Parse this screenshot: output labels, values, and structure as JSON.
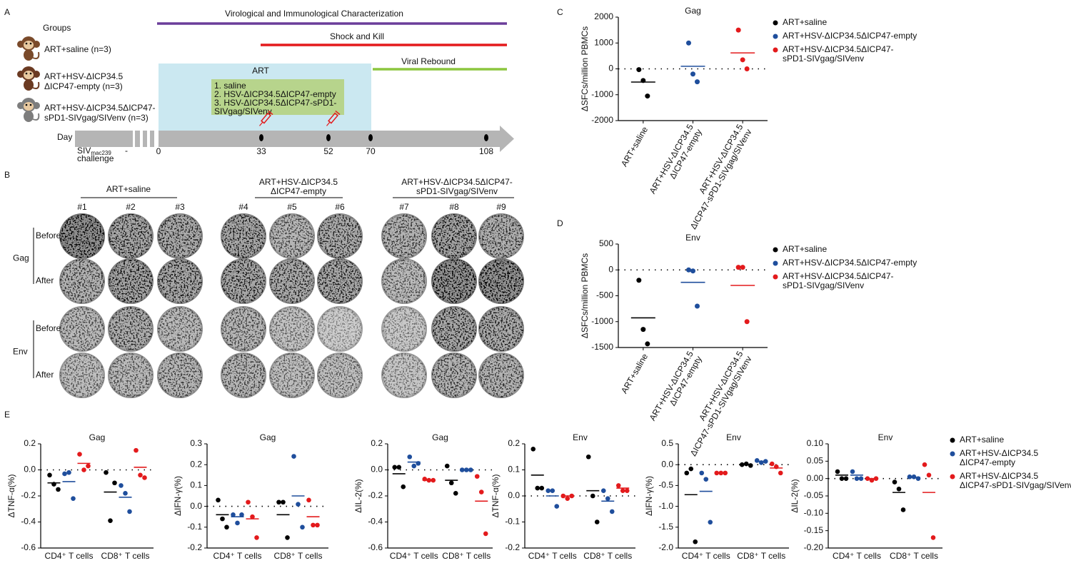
{
  "panels": [
    "A",
    "B",
    "C",
    "D",
    "E"
  ],
  "timeline": {
    "groups_title": "Groups",
    "groups": [
      [
        "ART+saline (n=3)"
      ],
      [
        "ART+HSV-ΔICP34.5",
        "ΔICP47-empty (n=3)"
      ],
      [
        "ART+HSV-ΔICP34.5ΔICP47-",
        "sPD1-SIVgag/SIVenv (n=3)"
      ]
    ],
    "phases": {
      "characterization": "Virological and Immunological Characterization",
      "shock_and_kill": "Shock and Kill",
      "art": "ART",
      "rebound": "Viral Rebound"
    },
    "treatments": [
      [
        "1. saline"
      ],
      [
        "2. HSV-ΔICP34.5ΔICP47-empty"
      ],
      [
        "3. HSV-ΔICP34.5ΔICP47-sPD1-",
        "SIVgag/SIVenv"
      ]
    ],
    "day_label": "Day",
    "days": [
      "0",
      "33",
      "52",
      "70",
      "108"
    ],
    "dash": "-",
    "challenge": {
      "virus": "SIV",
      "subscript": "mac239",
      "label": "challenge"
    }
  },
  "elispot": {
    "groups": [
      [
        "ART+saline"
      ],
      [
        "ART+HSV-ΔICP34.5",
        "ΔICP47-empty"
      ],
      [
        "ART+HSV-ΔICP34.5ΔICP47-",
        "sPD1-SIVgag/SIVenv"
      ]
    ],
    "animals": [
      "#1",
      "#2",
      "#3",
      "#4",
      "#5",
      "#6",
      "#7",
      "#8",
      "#9"
    ],
    "antigens": [
      "Gag",
      "Env"
    ],
    "timepoints": [
      "Before",
      "After"
    ]
  },
  "chart_data": [
    {
      "type": "dot",
      "title": "Gag",
      "ylabel": "ΔSFCs/million PBMCs",
      "categories": [
        [
          "ART+saline"
        ],
        [
          "ART+HSV-ΔICP34.5",
          "ΔICP47-empty"
        ],
        [
          "ART+HSV-ΔICP34.5",
          "ΔICP47-sPD1-SIVgag/SIVenv"
        ]
      ],
      "series": [
        {
          "name": [
            "ART+saline"
          ],
          "color": "#000000",
          "values": [
            -30,
            -450,
            -1050
          ],
          "mean": -510
        },
        {
          "name": [
            "ART+HSV-ΔICP34.5ΔICP47-empty"
          ],
          "color": "#1f4e9c",
          "values": [
            1000,
            -200,
            -500
          ],
          "mean": 100
        },
        {
          "name": [
            "ART+HSV-ΔICP34.5ΔICP47-",
            "sPD1-SIVgag/SIVenv"
          ],
          "color": "#e31a1c",
          "values": [
            1500,
            350,
            0
          ],
          "mean": 617
        }
      ],
      "ylim": [
        -2000,
        2000
      ],
      "yticks": [
        -2000,
        -1000,
        0,
        1000,
        2000
      ],
      "zero_line": true,
      "legend": "right"
    },
    {
      "type": "dot",
      "title": "Env",
      "ylabel": "ΔSFCs/million PBMCs",
      "categories": [
        [
          "ART+saline"
        ],
        [
          "ART+HSV-ΔICP34.5",
          "ΔICP47-empty"
        ],
        [
          "ART+HSV-ΔICP34.5",
          "ΔICP47-sPD1-SIVgag/SIVenv"
        ]
      ],
      "series": [
        {
          "name": [
            "ART+saline"
          ],
          "color": "#000000",
          "values": [
            -200,
            -1150,
            -1430
          ],
          "mean": -927
        },
        {
          "name": [
            "ART+HSV-ΔICP34.5ΔICP47-empty"
          ],
          "color": "#1f4e9c",
          "values": [
            0,
            -20,
            -700
          ],
          "mean": -240
        },
        {
          "name": [
            "ART+HSV-ΔICP34.5ΔICP47-",
            "sPD1-SIVgag/SIVenv"
          ],
          "color": "#e31a1c",
          "values": [
            50,
            50,
            -1000
          ],
          "mean": -300
        }
      ],
      "ylim": [
        -1500,
        500
      ],
      "yticks": [
        -1500,
        -1000,
        -500,
        0,
        500
      ],
      "zero_line": true,
      "legend": "right"
    },
    {
      "type": "grouped_dot",
      "title": "Gag",
      "ylabel": "ΔTNF-α(%)",
      "categories": [
        "CD4⁺ T cells",
        "CD8⁺ T cells"
      ],
      "series": [
        {
          "color": "#000000",
          "values": [
            [
              -0.04,
              -0.11,
              -0.15
            ],
            [
              -0.02,
              -0.39,
              -0.1
            ]
          ],
          "means": [
            -0.1,
            -0.17
          ]
        },
        {
          "color": "#1f4e9c",
          "values": [
            [
              -0.03,
              -0.02,
              -0.22
            ],
            [
              -0.12,
              -0.18,
              -0.32
            ]
          ],
          "means": [
            -0.09,
            -0.21
          ]
        },
        {
          "color": "#e31a1c",
          "values": [
            [
              0.12,
              0.0,
              0.03
            ],
            [
              0.15,
              -0.04,
              -0.06
            ]
          ],
          "means": [
            0.05,
            0.02
          ]
        }
      ],
      "ylim": [
        -0.6,
        0.2
      ],
      "yticks": [
        -0.6,
        -0.4,
        -0.2,
        {
          "value": 0,
          "label": "0.0"
        },
        0.2
      ],
      "zero_line": true
    },
    {
      "type": "grouped_dot",
      "title": "Gag",
      "ylabel": "ΔIFN-γ(%)",
      "categories": [
        "CD4⁺ T cells",
        "CD8⁺ T cells"
      ],
      "series": [
        {
          "color": "#000000",
          "values": [
            [
              0.03,
              -0.06,
              -0.1
            ],
            [
              0.02,
              0.02,
              -0.15
            ]
          ],
          "means": [
            -0.04,
            -0.04
          ]
        },
        {
          "color": "#1f4e9c",
          "values": [
            [
              -0.04,
              -0.08,
              -0.04
            ],
            [
              0.24,
              0.01,
              -0.1
            ]
          ],
          "means": [
            -0.05,
            0.05
          ]
        },
        {
          "color": "#e31a1c",
          "values": [
            [
              0.02,
              -0.05,
              -0.15
            ],
            [
              0.03,
              -0.09,
              -0.09
            ]
          ],
          "means": [
            -0.06,
            -0.05
          ]
        }
      ],
      "ylim": [
        -0.2,
        0.3
      ],
      "yticks": [
        -0.2,
        -0.1,
        {
          "value": 0,
          "label": "0.0"
        },
        0.1,
        0.2,
        0.3
      ],
      "zero_line": true
    },
    {
      "type": "grouped_dot",
      "title": "Gag",
      "ylabel": "ΔIL-2(%)",
      "categories": [
        "CD4⁺ T cells",
        "CD8⁺ T cells"
      ],
      "series": [
        {
          "color": "#000000",
          "values": [
            [
              0.02,
              0.02,
              -0.13
            ],
            [
              0.03,
              -0.1,
              -0.18
            ]
          ],
          "means": [
            -0.03,
            -0.08
          ]
        },
        {
          "color": "#1f4e9c",
          "values": [
            [
              0.1,
              0.03,
              0.05
            ],
            [
              0,
              0,
              0
            ]
          ],
          "means": [
            0.06,
            0
          ]
        },
        {
          "color": "#e31a1c",
          "values": [
            [
              -0.07,
              -0.08,
              -0.08
            ],
            [
              -0.05,
              -0.17,
              -0.49
            ]
          ],
          "means": [
            -0.08,
            -0.24
          ]
        }
      ],
      "ylim": [
        -0.6,
        0.2
      ],
      "yticks": [
        -0.6,
        -0.4,
        -0.2,
        {
          "value": 0,
          "label": "0.0"
        },
        0.2
      ],
      "zero_line": true
    },
    {
      "type": "grouped_dot",
      "title": "Env",
      "ylabel": "ΔTNF-α(%)",
      "categories": [
        "CD4⁺ T cells",
        "CD8⁺ T cells"
      ],
      "series": [
        {
          "color": "#000000",
          "values": [
            [
              0.18,
              0.03,
              0.03
            ],
            [
              0.15,
              0,
              -0.1
            ]
          ],
          "means": [
            0.08,
            0.02
          ]
        },
        {
          "color": "#1f4e9c",
          "values": [
            [
              0.02,
              0.02,
              -0.04
            ],
            [
              0.02,
              -0.01,
              -0.06
            ]
          ],
          "means": [
            0,
            -0.02
          ]
        },
        {
          "color": "#e31a1c",
          "values": [
            [
              0,
              -0.01,
              0
            ],
            [
              0.04,
              0.02,
              0.02
            ]
          ],
          "means": [
            0,
            0.03
          ]
        }
      ],
      "ylim": [
        -0.2,
        0.2
      ],
      "yticks": [
        -0.2,
        -0.1,
        {
          "value": 0,
          "label": "0.0"
        },
        0.1,
        0.2
      ],
      "zero_line": true
    },
    {
      "type": "grouped_dot",
      "title": "Env",
      "ylabel": "ΔIFN-γ(%)",
      "categories": [
        "CD4⁺ T cells",
        "CD8⁺ T cells"
      ],
      "series": [
        {
          "color": "#000000",
          "values": [
            [
              -0.2,
              -0.1,
              -1.85
            ],
            [
              0,
              0.02,
              -0.02
            ]
          ],
          "means": [
            -0.72,
            0
          ]
        },
        {
          "color": "#1f4e9c",
          "values": [
            [
              -0.2,
              -0.35,
              -1.38
            ],
            [
              0.1,
              0.05,
              0.08
            ]
          ],
          "means": [
            -0.64,
            0.08
          ]
        },
        {
          "color": "#e31a1c",
          "values": [
            [
              -0.2,
              -0.2,
              -0.2
            ],
            [
              0.02,
              -0.05,
              -0.2
            ]
          ],
          "means": [
            -0.2,
            -0.08
          ]
        }
      ],
      "ylim": [
        -2,
        0.5
      ],
      "yticks": [
        {
          "value": -2,
          "label": "-2.0"
        },
        -1.5,
        {
          "value": -1,
          "label": "-1.0"
        },
        -0.5,
        {
          "value": 0,
          "label": "0.0"
        },
        0.5
      ],
      "zero_line": true
    },
    {
      "type": "grouped_dot",
      "title": "Env",
      "ylabel": "ΔIL-2(%)",
      "categories": [
        "CD4⁺ T cells",
        "CD8⁺ T cells"
      ],
      "series": [
        {
          "name": [
            "ART+saline"
          ],
          "color": "#000000",
          "values": [
            [
              0.02,
              0,
              0
            ],
            [
              -0.01,
              -0.03,
              -0.09
            ]
          ],
          "means": [
            0.01,
            -0.04
          ]
        },
        {
          "name": [
            "ART+HSV-ΔICP34.5",
            "ΔICP47-empty"
          ],
          "color": "#1f4e9c",
          "values": [
            [
              0.02,
              0,
              0
            ],
            [
              0.005,
              0.005,
              0
            ]
          ],
          "means": [
            0.01,
            0.003
          ]
        },
        {
          "name": [
            "ART+HSV-ΔICP34.5",
            "ΔICP47-sPD1-SIVgag/SIVenv"
          ],
          "color": "#e31a1c",
          "values": [
            [
              0,
              -0.005,
              0
            ],
            [
              0.04,
              0.01,
              -0.17
            ]
          ],
          "means": [
            0,
            -0.04
          ]
        }
      ],
      "ylim": [
        -0.2,
        0.1
      ],
      "yticks": [
        {
          "value": -0.2,
          "label": "-0.20"
        },
        -0.15,
        {
          "value": -0.1,
          "label": "-0.10"
        },
        -0.05,
        {
          "value": 0,
          "label": "0.00"
        },
        0.05,
        {
          "value": 0.1,
          "label": "0.10"
        }
      ],
      "zero_line": true,
      "legend": "right"
    }
  ]
}
